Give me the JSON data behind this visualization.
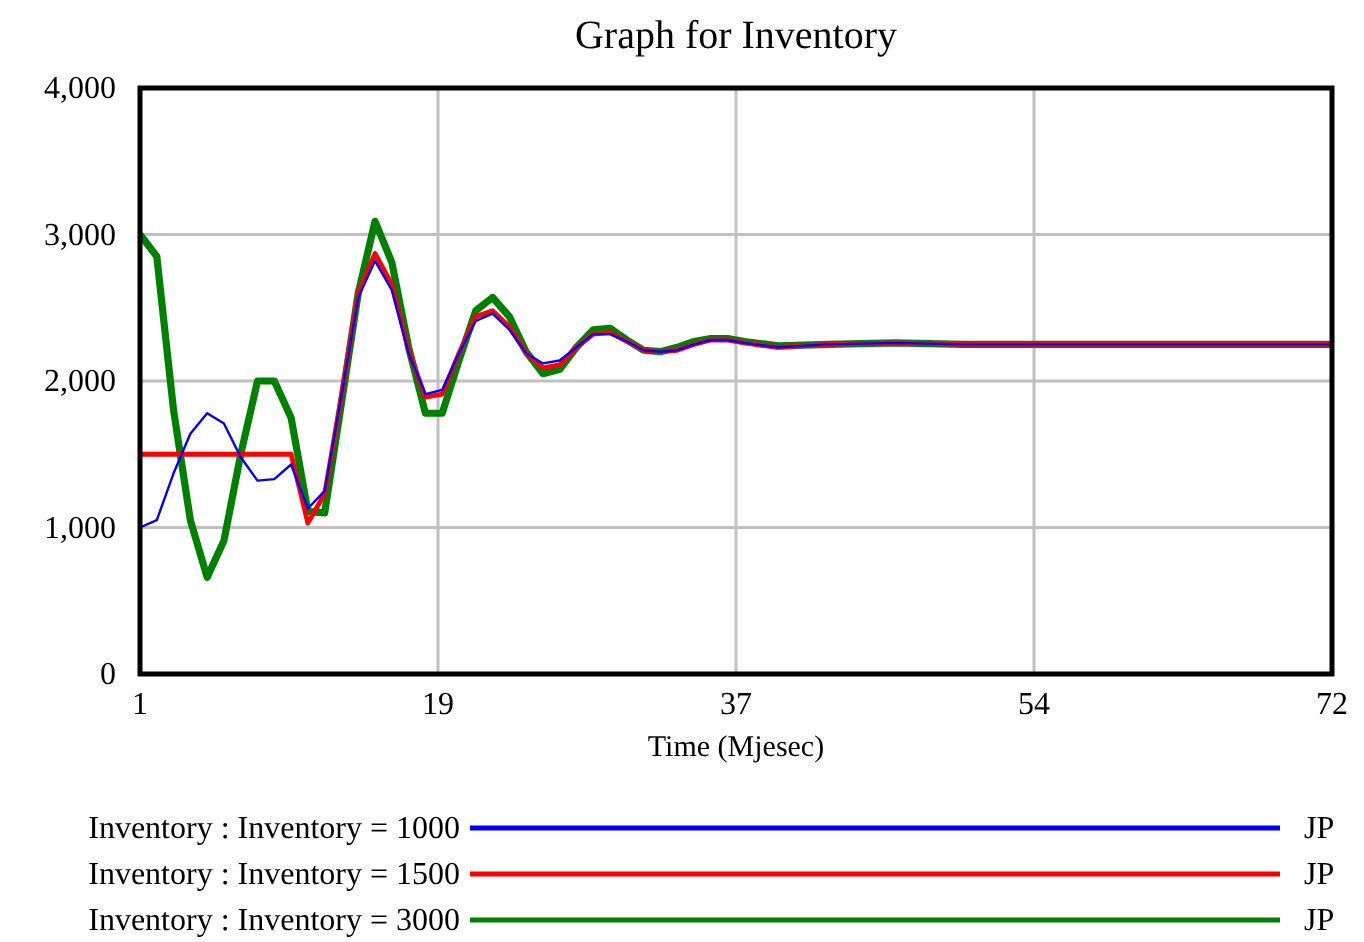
{
  "chart_data": {
    "type": "line",
    "title": "Graph for Inventory",
    "xlabel": "Time (Mjesec)",
    "xlim": [
      1,
      72
    ],
    "xticks": [
      1,
      {
        "value": 18.75,
        "label": "19"
      },
      {
        "value": 36.5,
        "label": "37"
      },
      {
        "value": 54.25,
        "label": "54"
      },
      72
    ],
    "ylim": [
      0,
      4000
    ],
    "yticks": [
      {
        "value": 0,
        "label": "0"
      },
      {
        "value": 1000,
        "label": "1,000"
      },
      {
        "value": 2000,
        "label": "2,000"
      },
      {
        "value": 3000,
        "label": "3,000"
      },
      {
        "value": 4000,
        "label": "4,000"
      }
    ],
    "grid": true,
    "legend": "bottom",
    "line_style": "solid",
    "x": [
      1,
      2,
      3,
      4,
      5,
      6,
      7,
      8,
      9,
      10,
      11,
      12,
      13,
      14,
      15,
      16,
      17,
      18,
      19,
      20,
      21,
      22,
      23,
      24,
      25,
      26,
      27,
      28,
      29,
      30,
      31,
      32,
      33,
      34,
      35,
      36,
      37,
      39,
      42,
      46,
      50,
      55,
      60,
      65,
      72
    ],
    "series": [
      {
        "name": "Inventory : Inventory = 1000",
        "color": "#0000ff",
        "values": [
          1000,
          1050,
          1370,
          1640,
          1780,
          1710,
          1480,
          1320,
          1330,
          1430,
          1130,
          1250,
          1900,
          2570,
          2820,
          2620,
          2190,
          1910,
          1940,
          2190,
          2410,
          2460,
          2350,
          2190,
          2120,
          2140,
          2230,
          2320,
          2320,
          2270,
          2210,
          2200,
          2210,
          2250,
          2280,
          2280,
          2260,
          2230,
          2250,
          2260,
          2250,
          2250,
          2250,
          2250,
          2250
        ]
      },
      {
        "name": "Inventory : Inventory = 1500",
        "color": "#ff0000",
        "values": [
          1500,
          1500,
          1500,
          1500,
          1500,
          1500,
          1500,
          1500,
          1500,
          1500,
          1030,
          1230,
          1900,
          2600,
          2870,
          2660,
          2210,
          1890,
          1910,
          2190,
          2440,
          2480,
          2370,
          2190,
          2090,
          2110,
          2230,
          2320,
          2330,
          2270,
          2210,
          2200,
          2210,
          2250,
          2280,
          2280,
          2260,
          2230,
          2250,
          2260,
          2250,
          2250,
          2250,
          2250,
          2250
        ]
      },
      {
        "name": "Inventory : Inventory = 3000",
        "color": "#008000",
        "values": [
          3000,
          2850,
          1800,
          1050,
          660,
          910,
          1500,
          2000,
          2000,
          1750,
          1110,
          1100,
          1850,
          2600,
          3090,
          2810,
          2230,
          1780,
          1780,
          2140,
          2480,
          2570,
          2440,
          2200,
          2050,
          2080,
          2230,
          2350,
          2360,
          2280,
          2210,
          2200,
          2230,
          2270,
          2290,
          2290,
          2270,
          2240,
          2250,
          2260,
          2250,
          2250,
          2250,
          2250,
          2250
        ]
      }
    ],
    "annotations": [
      "JP",
      "JP",
      "JP"
    ]
  }
}
